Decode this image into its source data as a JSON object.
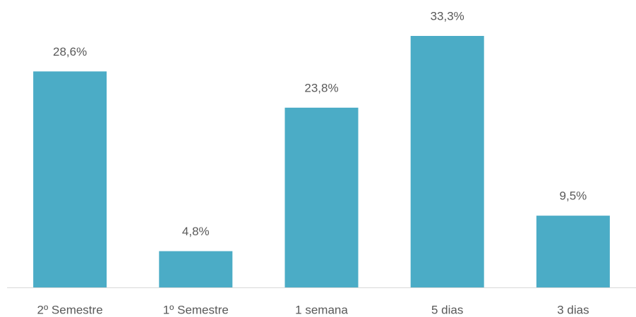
{
  "chart_data": {
    "type": "bar",
    "categories": [
      "2º Semestre",
      "1º Semestre",
      "1 semana",
      "5 dias",
      "3 dias"
    ],
    "values": [
      28.6,
      4.8,
      23.8,
      33.3,
      9.5
    ],
    "value_labels": [
      "28,6%",
      "4,8%",
      "23,8%",
      "33,3%",
      "9,5%"
    ],
    "color": "#4bacc6"
  }
}
